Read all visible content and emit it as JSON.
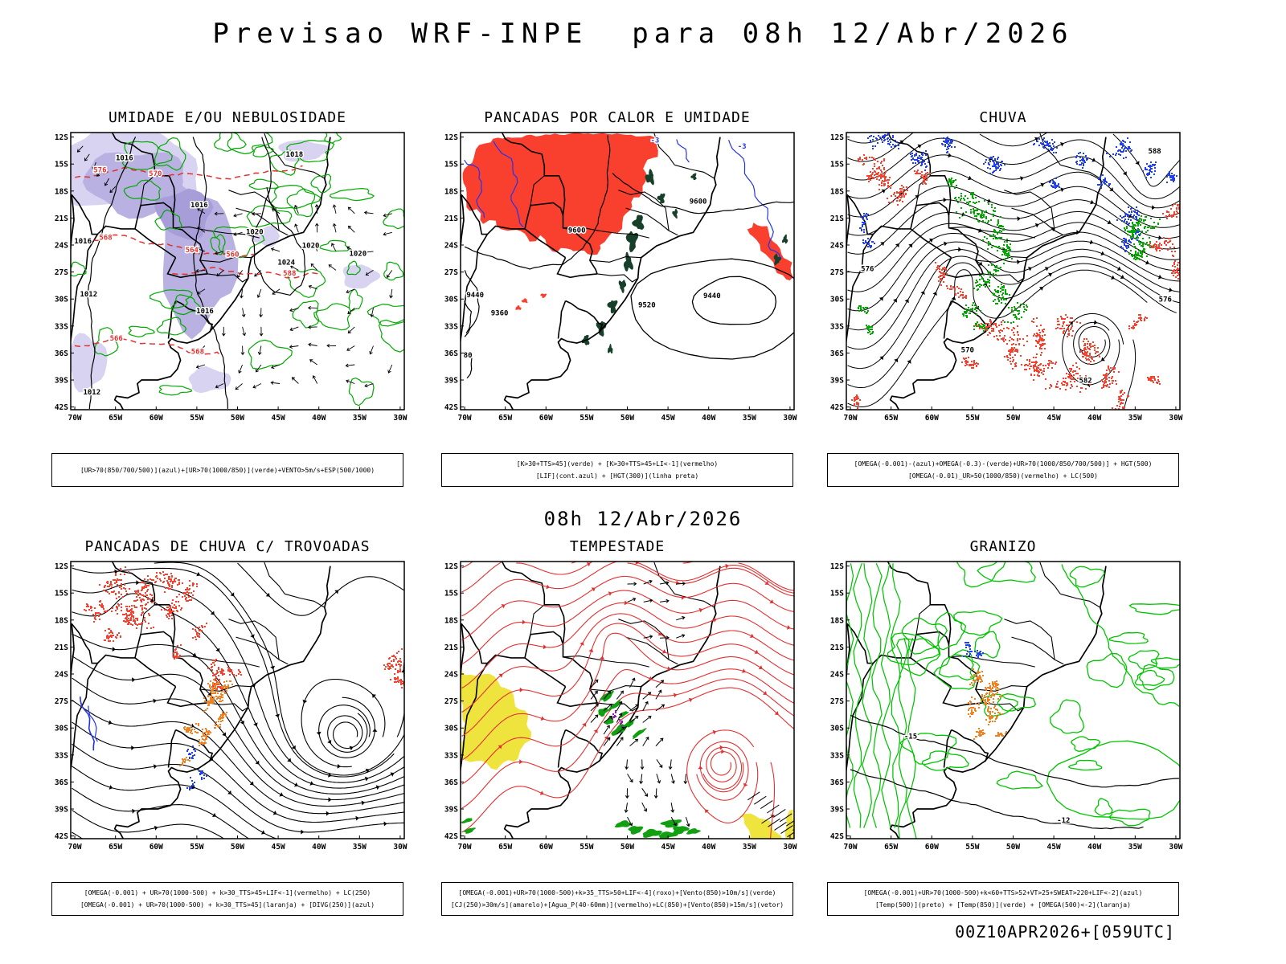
{
  "page": {
    "title": "Previsao WRF-INPE  para 08h 12/Abr/2026",
    "subtitle": "08h 12/Abr/2026",
    "footer": "00Z10APR2026+[059UTC]"
  },
  "axes": {
    "lat_ticks": [
      "12S",
      "15S",
      "18S",
      "21S",
      "24S",
      "27S",
      "30S",
      "33S",
      "36S",
      "39S",
      "42S"
    ],
    "lon_ticks": [
      "70W",
      "65W",
      "60W",
      "55W",
      "50W",
      "45W",
      "40W",
      "35W",
      "30W"
    ]
  },
  "palette": {
    "shading": "#b9b1e2",
    "shading_light": "#d8d3f0",
    "shading_dark": "#a79dd8",
    "green": "#00a800",
    "bgreen": "#00c400",
    "green_fill": "#12a012",
    "red": "#f9402e",
    "red_c": "#e23030",
    "dark_green": "#16402a",
    "blue": "#2433e8",
    "blue_s": "#2040f0",
    "orange": "#f08020",
    "yellow": "#efe43e",
    "purple": "#9018c8",
    "black": "#000000"
  },
  "chart_data": [
    {
      "type": "heatmap",
      "title": "UMIDADE E/OU NEBULOSIDADE",
      "legend_lines": [
        "[UR>70(850/700/500)](azul)+[UR>70(1000/850)](verde)+VENTO>5m/s+ESP(500/1000)"
      ],
      "lon_range": [
        "70W",
        "30W"
      ],
      "lat_range": [
        "12S",
        "42S"
      ],
      "layers": [
        {
          "name": "UR>70(850/700/500) (azul)",
          "style": "shading",
          "color": "#b9b1e2"
        },
        {
          "name": "UR>70(1000/850) (verde)",
          "style": "contour",
          "color": "#00a800"
        },
        {
          "name": "VENTO>5m/s",
          "style": "wind-vectors",
          "color": "#000000"
        },
        {
          "name": "ESP(500/1000)",
          "style": "dashed-contour",
          "color": "#e23030"
        },
        {
          "name": "pressao (linha preta)",
          "style": "contour",
          "color": "#000000"
        }
      ],
      "contour_labels": [
        {
          "text": "1016",
          "lon": 63.9,
          "lat": 14.6,
          "color": "#000000"
        },
        {
          "text": "1018",
          "lon": 43.0,
          "lat": 14.2,
          "color": "#000000"
        },
        {
          "text": "1016",
          "lon": 69.0,
          "lat": 23.8,
          "color": "#000000"
        },
        {
          "text": "1012",
          "lon": 68.3,
          "lat": 29.7,
          "color": "#000000"
        },
        {
          "text": "1016",
          "lon": 54.7,
          "lat": 19.8,
          "color": "#000000"
        },
        {
          "text": "1020",
          "lon": 47.9,
          "lat": 22.8,
          "color": "#000000"
        },
        {
          "text": "1024",
          "lon": 44.0,
          "lat": 26.2,
          "color": "#000000"
        },
        {
          "text": "1020",
          "lon": 41.0,
          "lat": 24.3,
          "color": "#000000"
        },
        {
          "text": "1020",
          "lon": 35.2,
          "lat": 25.2,
          "color": "#000000"
        },
        {
          "text": "1012",
          "lon": 67.9,
          "lat": 40.6,
          "color": "#000000"
        },
        {
          "text": "1016",
          "lon": 54.0,
          "lat": 31.6,
          "color": "#000000"
        },
        {
          "text": "576",
          "lon": 66.9,
          "lat": 15.9,
          "color": "#e23030"
        },
        {
          "text": "570",
          "lon": 60.1,
          "lat": 16.3,
          "color": "#e23030"
        },
        {
          "text": "568",
          "lon": 66.2,
          "lat": 23.4,
          "color": "#e23030"
        },
        {
          "text": "564",
          "lon": 55.6,
          "lat": 24.8,
          "color": "#e23030"
        },
        {
          "text": "560",
          "lon": 50.6,
          "lat": 25.3,
          "color": "#e23030"
        },
        {
          "text": "588",
          "lon": 43.6,
          "lat": 27.4,
          "color": "#e23030"
        },
        {
          "text": "566",
          "lon": 64.9,
          "lat": 34.6,
          "color": "#e23030"
        },
        {
          "text": "568",
          "lon": 54.9,
          "lat": 36.1,
          "color": "#e23030"
        }
      ]
    },
    {
      "type": "heatmap",
      "title": "PANCADAS POR CALOR E UMIDADE",
      "legend_lines": [
        "[K>30+TTS>45](verde) + [K>30+TTS>45+LI<-1](vermelho)",
        "[LIF](cont.azul) + [HGT(300)](linha preta)"
      ],
      "lon_range": [
        "70W",
        "30W"
      ],
      "lat_range": [
        "12S",
        "42S"
      ],
      "layers": [
        {
          "name": "K>30+TTS>45 (verde)",
          "style": "fill",
          "color": "#16402a"
        },
        {
          "name": "K>30+TTS>45+LI<-1 (vermelho)",
          "style": "fill",
          "color": "#f9402e"
        },
        {
          "name": "LIF (cont.azul)",
          "style": "contour",
          "color": "#2433e8"
        },
        {
          "name": "HGT(300) (linha preta)",
          "style": "contour",
          "color": "#000000"
        }
      ],
      "contour_labels": [
        {
          "text": "9600",
          "lon": 56.2,
          "lat": 22.6,
          "color": "#000000"
        },
        {
          "text": "9600",
          "lon": 41.3,
          "lat": 19.4,
          "color": "#000000"
        },
        {
          "text": "9520",
          "lon": 47.6,
          "lat": 30.9,
          "color": "#000000"
        },
        {
          "text": "9440",
          "lon": 39.6,
          "lat": 29.9,
          "color": "#000000"
        },
        {
          "text": "9440",
          "lon": 68.7,
          "lat": 29.8,
          "color": "#000000"
        },
        {
          "text": "9360",
          "lon": 65.7,
          "lat": 31.8,
          "color": "#000000"
        },
        {
          "text": "80",
          "lon": 69.6,
          "lat": 36.5,
          "color": "#000000"
        },
        {
          "text": "-3",
          "lon": 46.6,
          "lat": 12.6,
          "color": "#2433e8"
        },
        {
          "text": "-3",
          "lon": 35.9,
          "lat": 13.3,
          "color": "#2433e8"
        }
      ]
    },
    {
      "type": "heatmap",
      "title": "CHUVA",
      "legend_lines": [
        "[OMEGA(-0.001)-(azul)+OMEGA(-0.3)-(verde)+UR>70(1000/850/700/500)] + HGT(500)",
        "[OMEGA(-0.01)_UR>50(1000/850)(vermelho) + LC(500)"
      ],
      "lon_range": [
        "70W",
        "30W"
      ],
      "lat_range": [
        "12S",
        "42S"
      ],
      "layers": [
        {
          "name": "OMEGA(-0.001) (azul)",
          "style": "speckle",
          "color": "#2040f0"
        },
        {
          "name": "OMEGA(-0.3) (verde)",
          "style": "speckle",
          "color": "#00a800"
        },
        {
          "name": "OMEGA(-0.01)_UR>50 (vermelho)",
          "style": "speckle",
          "color": "#f9402e"
        },
        {
          "name": "HGT(500) + LC(500)",
          "style": "streamline",
          "color": "#000000"
        }
      ],
      "contour_labels": [
        {
          "text": "588",
          "lon": 32.6,
          "lat": 13.8,
          "color": "#000000"
        },
        {
          "text": "576",
          "lon": 67.9,
          "lat": 26.9,
          "color": "#000000"
        },
        {
          "text": "570",
          "lon": 55.6,
          "lat": 35.9,
          "color": "#000000"
        },
        {
          "text": "582",
          "lon": 41.1,
          "lat": 39.3,
          "color": "#000000"
        },
        {
          "text": "576",
          "lon": 31.3,
          "lat": 30.3,
          "color": "#000000"
        }
      ]
    },
    {
      "type": "heatmap",
      "title": "PANCADAS DE CHUVA C/ TROVOADAS",
      "legend_lines": [
        "[OMEGA(-0.001) + UR>70(1000-500) + k>30_TTS>45+LIF<-1](vermelho) + LC(250)",
        "[OMEGA(-0.001) + UR>70(1000-500) + k>30_TTS>45](laranja) + [DIVG(250)](azul)"
      ],
      "lon_range": [
        "70W",
        "30W"
      ],
      "lat_range": [
        "12S",
        "42S"
      ],
      "layers": [
        {
          "name": "k>30_TTS>45+LIF<-1 (vermelho)",
          "style": "speckle",
          "color": "#f9402e"
        },
        {
          "name": "k>30_TTS>45 (laranja)",
          "style": "speckle",
          "color": "#f08020"
        },
        {
          "name": "DIVG(250) (azul)",
          "style": "contour",
          "color": "#2433e8"
        },
        {
          "name": "LC(250)",
          "style": "streamline",
          "color": "#000000"
        }
      ],
      "contour_labels": []
    },
    {
      "type": "heatmap",
      "title": "TEMPESTADE",
      "legend_lines": [
        "[OMEGA(-0.001)+UR>70(1000-500)+k>35_TTS>50+LIF<-4](roxo)+[Vento(850)>10m/s](verde)",
        "[CJ(250)>30m/s](amarelo)+[Agua_P(40-60mm)](vermelho)+LC(850)+[Vento(850)>15m/s](vetor)"
      ],
      "lon_range": [
        "70W",
        "30W"
      ],
      "lat_range": [
        "12S",
        "42S"
      ],
      "layers": [
        {
          "name": "k>35_TTS>50+LIF<-4 (roxo)",
          "style": "speckle",
          "color": "#9018c8"
        },
        {
          "name": "Vento(850)>10m/s (verde)",
          "style": "fill",
          "color": "#12a012"
        },
        {
          "name": "CJ(250)>30m/s (amarelo)",
          "style": "fill",
          "color": "#efe43e"
        },
        {
          "name": "Agua_P(40-60mm) (vermelho)",
          "style": "contour",
          "color": "#e23030"
        },
        {
          "name": "Vento(850)>15m/s (vetor)",
          "style": "vectors",
          "color": "#000000"
        }
      ],
      "contour_labels": []
    },
    {
      "type": "heatmap",
      "title": "GRANIZO",
      "legend_lines": [
        "[OMEGA(-0.001)+UR>70(1000-500)+k<60+TTS>52+VT>25+SWEAT>220+LIF<-2](azul)",
        "[Temp(500)](preto) + [Temp(850)](verde) + [OMEGA(500)<-2](laranja)"
      ],
      "lon_range": [
        "70W",
        "30W"
      ],
      "lat_range": [
        "12S",
        "42S"
      ],
      "layers": [
        {
          "name": "indice (azul)",
          "style": "speckle",
          "color": "#2040f0"
        },
        {
          "name": "Temp(500) (preto)",
          "style": "contour",
          "color": "#000000"
        },
        {
          "name": "Temp(850) (verde)",
          "style": "contour",
          "color": "#00c400"
        },
        {
          "name": "OMEGA(500)<-2 (laranja)",
          "style": "speckle",
          "color": "#f08020"
        }
      ],
      "contour_labels": [
        {
          "text": "-15",
          "lon": 62.6,
          "lat": 31.2,
          "color": "#000000"
        },
        {
          "text": "-12",
          "lon": 43.8,
          "lat": 40.5,
          "color": "#000000"
        }
      ]
    }
  ]
}
